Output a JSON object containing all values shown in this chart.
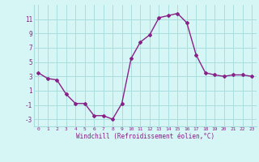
{
  "x": [
    0,
    1,
    2,
    3,
    4,
    5,
    6,
    7,
    8,
    9,
    10,
    11,
    12,
    13,
    14,
    15,
    16,
    17,
    18,
    19,
    20,
    21,
    22,
    23
  ],
  "y": [
    3.5,
    2.7,
    2.5,
    0.5,
    -0.8,
    -0.8,
    -2.5,
    -2.5,
    -3.0,
    -0.8,
    5.5,
    7.8,
    8.8,
    11.2,
    11.5,
    11.8,
    10.5,
    6.0,
    3.5,
    3.2,
    3.0,
    3.2,
    3.2,
    3.0
  ],
  "line_color": "#882288",
  "marker": "D",
  "marker_size": 2,
  "bg_color": "#d6f5f5",
  "grid_color": "#aadddd",
  "xlabel": "Windchill (Refroidissement éolien,°C)",
  "xlabel_color": "#882288",
  "yticks": [
    -3,
    -1,
    1,
    3,
    5,
    7,
    9,
    11
  ],
  "xticks": [
    0,
    1,
    2,
    3,
    4,
    5,
    6,
    7,
    8,
    9,
    10,
    11,
    12,
    13,
    14,
    15,
    16,
    17,
    18,
    19,
    20,
    21,
    22,
    23
  ],
  "ylim": [
    -4,
    13
  ],
  "xlim": [
    -0.5,
    23.5
  ]
}
